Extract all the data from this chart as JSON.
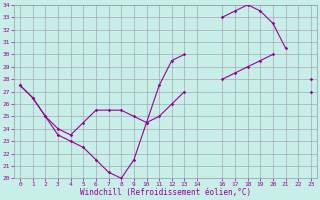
{
  "background_color": "#c8eee8",
  "grid_color": "#9999aa",
  "line_color": "#990099",
  "xlabel": "Windchill (Refroidissement éolien,°C)",
  "xlim": [
    -0.5,
    23.5
  ],
  "ylim": [
    20,
    34
  ],
  "xticks": [
    0,
    1,
    2,
    3,
    4,
    5,
    6,
    7,
    8,
    9,
    10,
    11,
    12,
    13,
    14,
    16,
    17,
    18,
    19,
    20,
    21,
    22,
    23
  ],
  "yticks": [
    20,
    21,
    22,
    23,
    24,
    25,
    26,
    27,
    28,
    29,
    30,
    31,
    32,
    33,
    34
  ],
  "series1": {
    "x": [
      0,
      1,
      2,
      3,
      4,
      5,
      6,
      7,
      8,
      9,
      10,
      11,
      12,
      13,
      14,
      16,
      17,
      18,
      19,
      20,
      21,
      22,
      23
    ],
    "y": [
      27.5,
      26.5,
      25.0,
      23.5,
      23.0,
      22.5,
      21.5,
      20.5,
      20.0,
      21.5,
      24.5,
      27.5,
      29.5,
      30.0,
      null,
      33.0,
      33.5,
      34.0,
      33.5,
      32.5,
      30.5,
      null,
      28.0
    ]
  },
  "series2": {
    "x": [
      0,
      1,
      2,
      3,
      4,
      5,
      6,
      7,
      8,
      9,
      10,
      11,
      12,
      13,
      14,
      16,
      17,
      18,
      19,
      20,
      21,
      22,
      23
    ],
    "y": [
      27.5,
      26.5,
      25.0,
      24.0,
      23.5,
      24.5,
      25.5,
      25.5,
      25.5,
      25.0,
      24.5,
      25.0,
      26.0,
      27.0,
      null,
      28.0,
      28.5,
      29.0,
      29.5,
      30.0,
      null,
      null,
      27.0
    ]
  }
}
